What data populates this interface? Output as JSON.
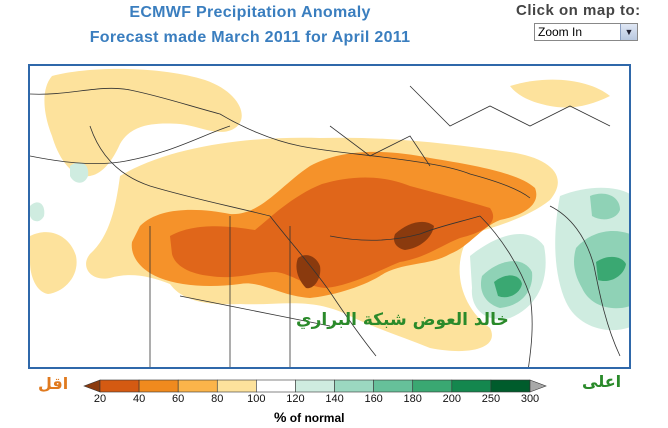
{
  "header": {
    "title_line1": "ECMWF Precipitation Anomaly",
    "title_line2": "Forecast made March 2011 for April 2011"
  },
  "controls": {
    "click_label": "Click on map to:",
    "zoom_selected": "Zoom In",
    "zoom_arrow_icon": "chevron-down-icon"
  },
  "map": {
    "watermark": "خالد العوض شبكة البراري"
  },
  "legend": {
    "low_label": "اقل",
    "high_label": "اعلى",
    "ticks": [
      "20",
      "40",
      "60",
      "80",
      "100",
      "120",
      "140",
      "160",
      "180",
      "200",
      "250",
      "300"
    ],
    "unit_symbol": "%",
    "unit_text": "of normal",
    "colors": [
      "#8a3a0e",
      "#d45a12",
      "#f08a1e",
      "#fbb44a",
      "#fde29c",
      "#ffffff",
      "#cfece0",
      "#9bd8c0",
      "#66c09a",
      "#3aa872",
      "#14874e",
      "#005c2c",
      "#a8a8a8"
    ]
  }
}
